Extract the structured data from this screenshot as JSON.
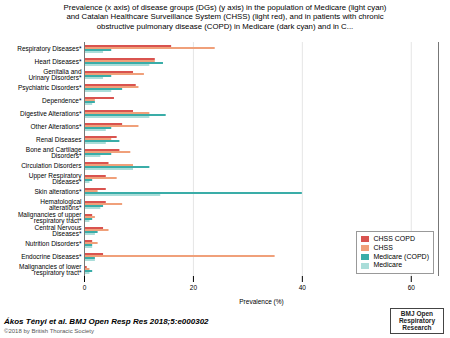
{
  "chart_data": {
    "type": "bar",
    "orientation": "horizontal",
    "title": "Prevalence (x axis) of disease groups (DGs) (y axis) in the population of Medicare (light cyan)\nand Catalan Healthcare Surveillance System (CHSS) (light red), and in patients with chronic\nobstructive pulmonary disease (COPD) in Medicare (dark cyan) and in C...",
    "categories": [
      "Respiratory Diseases*",
      "Heart Diseases*",
      "Genitalia and\nUrinary Disorders*",
      "Psychiatric Disorders*",
      "Dependence*",
      "Digestive Alterations*",
      "Other Alterations*",
      "Renal Diseases",
      "Bone and Cartilage\nDisorders*",
      "Circulation Disorders",
      "Upper Respiratory\nDiseases*",
      "Skin alterations*",
      "Hematological\nalterations*",
      "Malignancies of upper\nrespiratory tract*",
      "Central Nervous\nDiseases*",
      "Nutrition Disorders*",
      "Endocrine Diseases*",
      "Malignancies of lower\nrespiratory tract*"
    ],
    "series": [
      {
        "name": "CHSS COPD",
        "color": "#d9534f",
        "values": [
          16.0,
          13.0,
          9.0,
          9.5,
          5.5,
          9.0,
          7.0,
          6.0,
          6.5,
          4.5,
          4.0,
          4.0,
          4.0,
          1.5,
          3.5,
          1.5,
          3.5,
          0.5
        ]
      },
      {
        "name": "CHSS",
        "color": "#f0a07a",
        "values": [
          24.0,
          13.0,
          11.0,
          10.0,
          2.0,
          12.0,
          10.0,
          5.0,
          8.5,
          9.0,
          6.0,
          2.5,
          7.0,
          2.0,
          4.5,
          2.5,
          35.0,
          1.0
        ]
      },
      {
        "name": "Medicare (COPD)",
        "color": "#3aada8",
        "values": [
          5.0,
          14.5,
          5.0,
          7.0,
          2.0,
          15.0,
          5.0,
          6.5,
          5.0,
          12.0,
          1.5,
          40.0,
          3.5,
          1.5,
          2.5,
          1.5,
          2.0,
          1.5
        ]
      },
      {
        "name": "Medicare",
        "color": "#aaddd9",
        "values": [
          3.5,
          12.0,
          3.5,
          5.0,
          1.5,
          12.0,
          4.0,
          4.0,
          3.0,
          9.0,
          1.0,
          14.0,
          3.0,
          1.0,
          2.0,
          1.5,
          2.0,
          1.0
        ]
      }
    ],
    "xlabel": "Prevalence (%)",
    "xlim": [
      0,
      65
    ],
    "xticks": [
      0,
      20,
      40,
      60
    ],
    "grid": true,
    "legend": "lower right",
    "annotations": [
      "Ákos Tényi et al. BMJ Open Resp Res 2018;5:e000302",
      "©2018 by British Thoracic Society",
      "BMJ Open\nRespiratory\nResearch"
    ]
  }
}
